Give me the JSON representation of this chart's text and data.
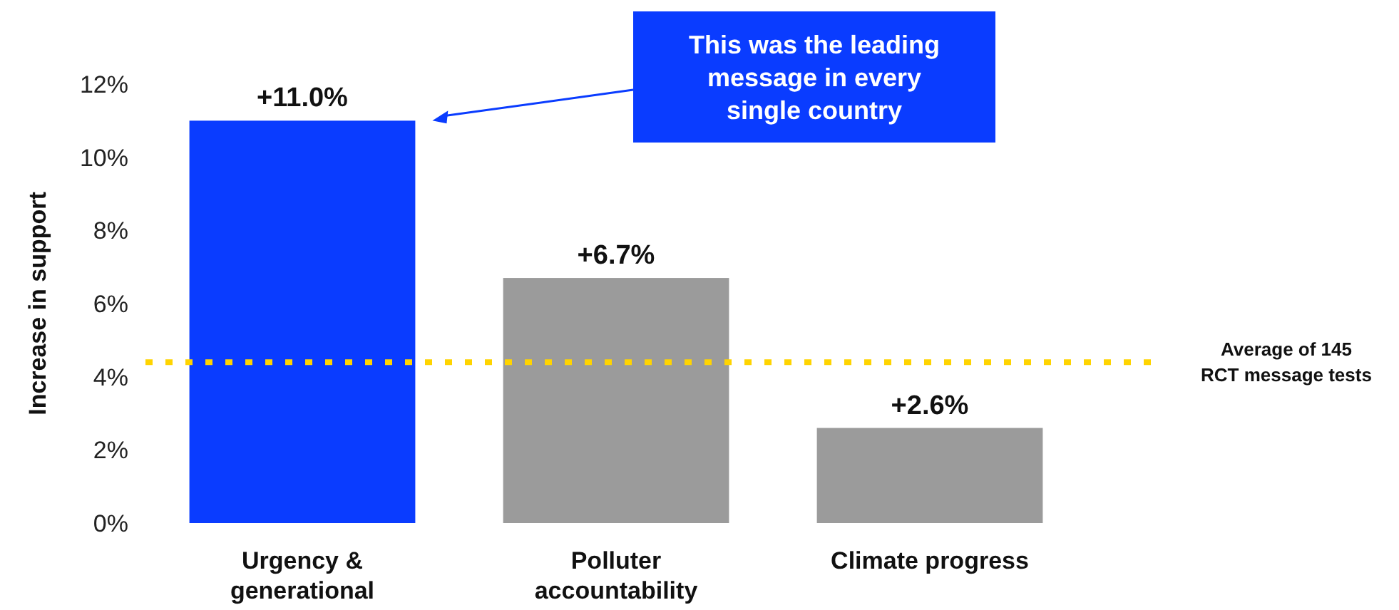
{
  "chart_data": {
    "type": "bar",
    "ylabel": "Increase in support",
    "categories": [
      "Urgency & generational",
      "Polluter accountability",
      "Climate progress"
    ],
    "values": [
      11.0,
      6.7,
      2.6
    ],
    "colors": [
      "#0a3cff",
      "#9b9b9b",
      "#9b9b9b"
    ],
    "value_labels": [
      "+11.0%",
      "+6.7%",
      "+2.6%"
    ],
    "ylim": [
      0,
      12
    ],
    "yticks": [
      {
        "value": 0,
        "label": "0%"
      },
      {
        "value": 2,
        "label": "2%"
      },
      {
        "value": 4,
        "label": "4%"
      },
      {
        "value": 6,
        "label": "6%"
      },
      {
        "value": 8,
        "label": "8%"
      },
      {
        "value": 10,
        "label": "10%"
      },
      {
        "value": 12,
        "label": "12%"
      }
    ],
    "grid": false,
    "ref_lines": [
      {
        "axis": "y",
        "value": 4.4,
        "label": "Average of 145 RCT message tests",
        "color": "#ffd400",
        "line_style": "dotted"
      }
    ],
    "annotations": [
      "This was the leading message in every single country"
    ]
  }
}
